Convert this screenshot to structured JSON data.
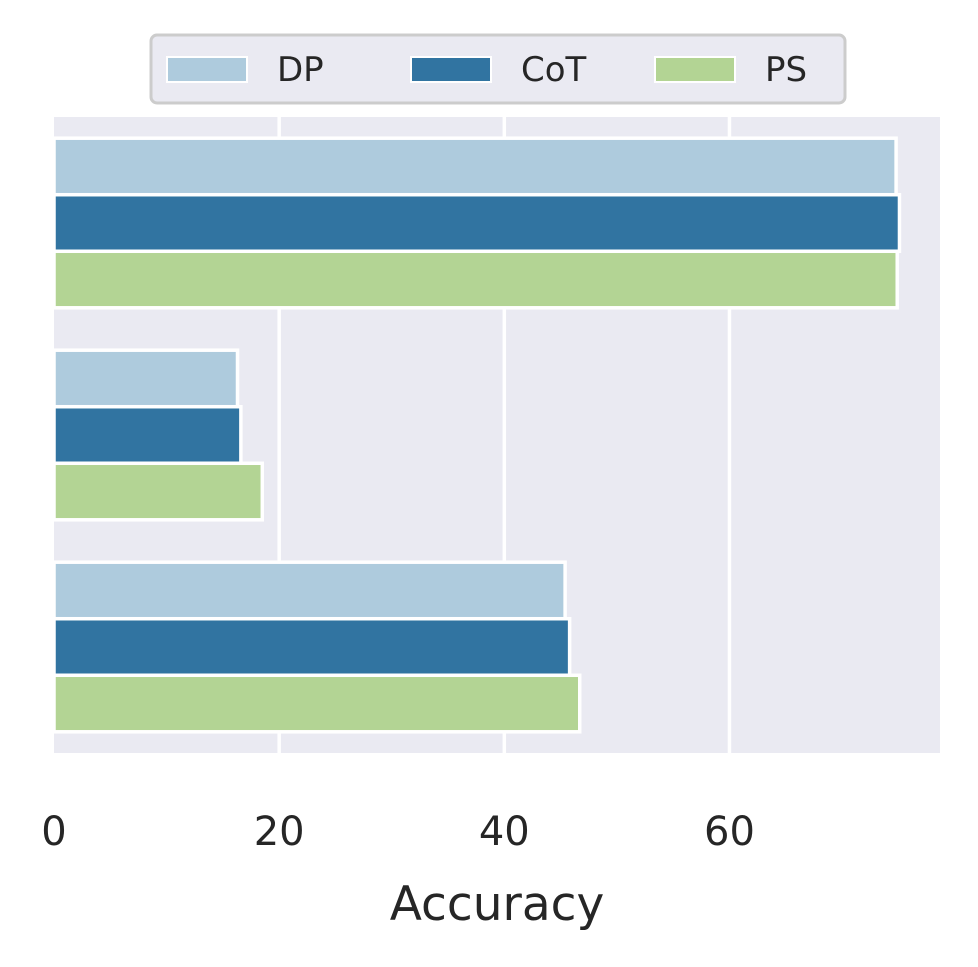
{
  "chart_data": {
    "type": "bar",
    "orientation": "horizontal",
    "categories": [
      "",
      "",
      ""
    ],
    "series": [
      {
        "name": "DP",
        "color": "#aecbdd",
        "values": [
          74.8,
          16.3,
          45.4
        ]
      },
      {
        "name": "CoT",
        "color": "#3174a1",
        "values": [
          75.1,
          16.6,
          45.8
        ]
      },
      {
        "name": "PS",
        "color": "#b3d494",
        "values": [
          74.9,
          18.5,
          46.7
        ]
      }
    ],
    "xlabel": "Accuracy",
    "ylabel": "",
    "xlim": [
      0,
      78.7
    ],
    "xticks": [
      0,
      20,
      40,
      60
    ],
    "grid": true,
    "legend": {
      "position": "top",
      "columns": 3
    },
    "background": "#eaeaf2"
  }
}
